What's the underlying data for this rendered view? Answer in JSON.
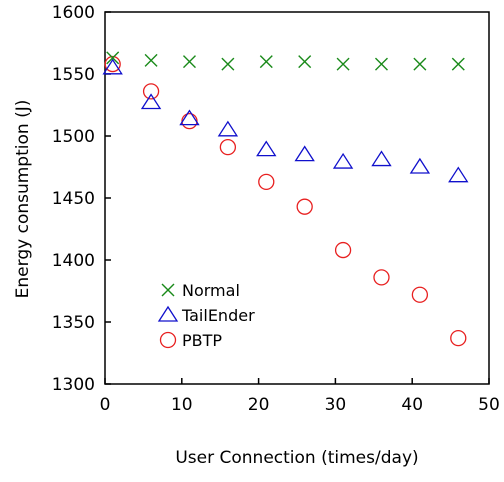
{
  "chart_data": {
    "type": "scatter",
    "xlabel": "User Connection (times/day)",
    "ylabel": "Energy consumption (J)",
    "xlim": [
      0,
      50
    ],
    "ylim": [
      1300,
      1600
    ],
    "xticks": [
      0,
      10,
      20,
      30,
      40,
      50
    ],
    "yticks": [
      1300,
      1350,
      1400,
      1450,
      1500,
      1550,
      1600
    ],
    "xtick_labels": [
      "0",
      "10",
      "20",
      "30",
      "40",
      "50"
    ],
    "ytick_labels": [
      "1300",
      "1350",
      "1400",
      "1450",
      "1500",
      "1550",
      "1600"
    ],
    "grid": false,
    "legend_position": "bottom-left",
    "series": [
      {
        "name": "Normal",
        "marker": "x",
        "color": "#1a8a1a",
        "x": [
          1,
          6,
          11,
          16,
          21,
          26,
          31,
          36,
          41,
          46
        ],
        "y": [
          1563,
          1561,
          1560,
          1558,
          1560,
          1560,
          1558,
          1558,
          1558,
          1558
        ]
      },
      {
        "name": "TailEnder",
        "marker": "triangle",
        "color": "#1010cc",
        "x": [
          1,
          6,
          11,
          16,
          21,
          26,
          31,
          36,
          41,
          46
        ],
        "y": [
          1555,
          1527,
          1514,
          1505,
          1489,
          1485,
          1479,
          1481,
          1475,
          1468
        ]
      },
      {
        "name": "PBTP",
        "marker": "circle",
        "color": "#e82020",
        "x": [
          1,
          6,
          11,
          16,
          21,
          26,
          31,
          36,
          41,
          46
        ],
        "y": [
          1558,
          1536,
          1512,
          1491,
          1463,
          1443,
          1408,
          1386,
          1372,
          1337
        ]
      }
    ]
  }
}
